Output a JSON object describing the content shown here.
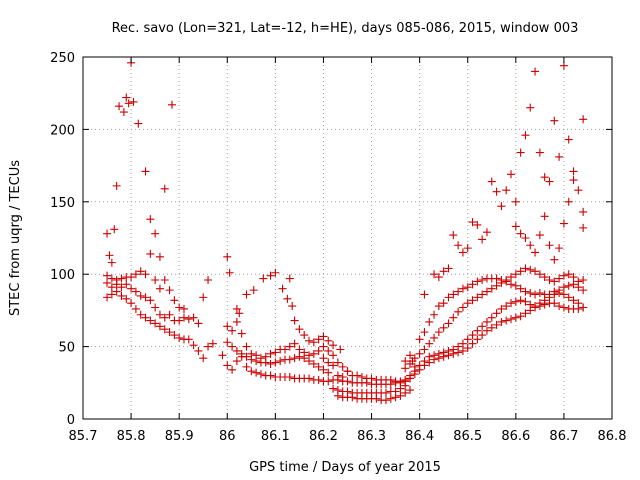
{
  "chart_data": {
    "type": "scatter",
    "title": "Rec. savo (Lon=321, Lat=-12, h=HE), days 085-086, 2015, window 003",
    "xlabel": "GPS time / Days of year 2015",
    "ylabel": "STEC from uqrg / TECUs",
    "xlim": [
      85.7,
      86.8
    ],
    "ylim": [
      0,
      250
    ],
    "x_ticks": [
      "85.7",
      "85.8",
      "85.9",
      "86",
      "86.1",
      "86.2",
      "86.3",
      "86.4",
      "86.5",
      "86.6",
      "86.7",
      "86.8"
    ],
    "y_ticks": [
      "0",
      "50",
      "100",
      "150",
      "200",
      "250"
    ],
    "grid": true,
    "marker": "plus",
    "color": "#cc0000",
    "points": [
      [
        85.75,
        128
      ],
      [
        85.755,
        113
      ],
      [
        85.76,
        108
      ],
      [
        85.765,
        131
      ],
      [
        85.77,
        161
      ],
      [
        85.775,
        216
      ],
      [
        85.785,
        212
      ],
      [
        85.79,
        222
      ],
      [
        85.795,
        218
      ],
      [
        85.8,
        246
      ],
      [
        85.805,
        219
      ],
      [
        85.815,
        204
      ],
      [
        85.83,
        171
      ],
      [
        85.84,
        138
      ],
      [
        85.85,
        128
      ],
      [
        85.86,
        112
      ],
      [
        85.87,
        159
      ],
      [
        85.885,
        217
      ],
      [
        85.75,
        99
      ],
      [
        85.76,
        97
      ],
      [
        85.77,
        96
      ],
      [
        85.78,
        97
      ],
      [
        85.79,
        98
      ],
      [
        85.8,
        98
      ],
      [
        85.81,
        100
      ],
      [
        85.82,
        102
      ],
      [
        85.83,
        100
      ],
      [
        85.84,
        114
      ],
      [
        85.85,
        96
      ],
      [
        85.86,
        90
      ],
      [
        85.87,
        96
      ],
      [
        85.88,
        89
      ],
      [
        85.89,
        82
      ],
      [
        85.9,
        77
      ],
      [
        85.91,
        76
      ],
      [
        85.92,
        69
      ],
      [
        85.93,
        70
      ],
      [
        85.94,
        66
      ],
      [
        85.95,
        84
      ],
      [
        85.96,
        96
      ],
      [
        85.75,
        94
      ],
      [
        85.76,
        91
      ],
      [
        85.77,
        93
      ],
      [
        85.78,
        91
      ],
      [
        85.79,
        93
      ],
      [
        85.8,
        90
      ],
      [
        85.81,
        88
      ],
      [
        85.82,
        85
      ],
      [
        85.83,
        84
      ],
      [
        85.84,
        82
      ],
      [
        85.85,
        77
      ],
      [
        85.86,
        72
      ],
      [
        85.87,
        70
      ],
      [
        85.88,
        72
      ],
      [
        85.89,
        68
      ],
      [
        85.9,
        68
      ],
      [
        85.91,
        70
      ],
      [
        85.75,
        84
      ],
      [
        85.76,
        86
      ],
      [
        85.77,
        88
      ],
      [
        85.78,
        85
      ],
      [
        85.79,
        83
      ],
      [
        85.8,
        80
      ],
      [
        85.81,
        76
      ],
      [
        85.82,
        72
      ],
      [
        85.83,
        70
      ],
      [
        85.84,
        68
      ],
      [
        85.85,
        66
      ],
      [
        85.86,
        64
      ],
      [
        85.87,
        62
      ],
      [
        85.88,
        60
      ],
      [
        85.89,
        58
      ],
      [
        85.9,
        56
      ],
      [
        85.91,
        55
      ],
      [
        85.92,
        55
      ],
      [
        85.93,
        51
      ],
      [
        85.94,
        47
      ],
      [
        85.95,
        42
      ],
      [
        85.96,
        50
      ],
      [
        85.97,
        52
      ],
      [
        85.99,
        44
      ],
      [
        86.0,
        112
      ],
      [
        86.005,
        101
      ],
      [
        86.02,
        76
      ],
      [
        86.025,
        73
      ],
      [
        86.04,
        86
      ],
      [
        86.055,
        89
      ],
      [
        86.075,
        97
      ],
      [
        86.09,
        99
      ],
      [
        86.1,
        101
      ],
      [
        86.115,
        90
      ],
      [
        86.125,
        83
      ],
      [
        86.13,
        97
      ],
      [
        86.135,
        78
      ],
      [
        86.14,
        68
      ],
      [
        86.15,
        62
      ],
      [
        86.16,
        58
      ],
      [
        86.17,
        54
      ],
      [
        86.18,
        53
      ],
      [
        86.19,
        55
      ],
      [
        86.2,
        57
      ],
      [
        86.21,
        54
      ],
      [
        86.22,
        51
      ],
      [
        86.235,
        48
      ],
      [
        86.0,
        64
      ],
      [
        86.01,
        61
      ],
      [
        86.02,
        67
      ],
      [
        86.03,
        59
      ],
      [
        86.04,
        50
      ],
      [
        86.05,
        45
      ],
      [
        86.06,
        44
      ],
      [
        86.07,
        42
      ],
      [
        86.08,
        43
      ],
      [
        86.09,
        45
      ],
      [
        86.1,
        46
      ],
      [
        86.11,
        48
      ],
      [
        86.12,
        48
      ],
      [
        86.13,
        50
      ],
      [
        86.14,
        52
      ],
      [
        86.15,
        48
      ],
      [
        86.16,
        46
      ],
      [
        86.17,
        44
      ],
      [
        86.18,
        45
      ],
      [
        86.19,
        47
      ],
      [
        86.2,
        50
      ],
      [
        86.21,
        47
      ],
      [
        86.22,
        44
      ],
      [
        86.23,
        39
      ],
      [
        86.24,
        36
      ],
      [
        86.25,
        33
      ],
      [
        86.0,
        53
      ],
      [
        86.01,
        50
      ],
      [
        86.02,
        47
      ],
      [
        86.03,
        45
      ],
      [
        86.04,
        43
      ],
      [
        86.05,
        41
      ],
      [
        86.06,
        40
      ],
      [
        86.07,
        39
      ],
      [
        86.08,
        39
      ],
      [
        86.09,
        38
      ],
      [
        86.1,
        39
      ],
      [
        86.11,
        40
      ],
      [
        86.12,
        41
      ],
      [
        86.13,
        41
      ],
      [
        86.14,
        42
      ],
      [
        86.15,
        43
      ],
      [
        86.16,
        42
      ],
      [
        86.17,
        40
      ],
      [
        86.18,
        38
      ],
      [
        86.19,
        36
      ],
      [
        86.2,
        34
      ],
      [
        86.21,
        32
      ],
      [
        86.0,
        37
      ],
      [
        86.01,
        34
      ],
      [
        86.02,
        40
      ],
      [
        86.03,
        43
      ],
      [
        86.04,
        36
      ],
      [
        86.05,
        33
      ],
      [
        86.06,
        32
      ],
      [
        86.07,
        31
      ],
      [
        86.08,
        30
      ],
      [
        86.09,
        30
      ],
      [
        86.1,
        29
      ],
      [
        86.11,
        29
      ],
      [
        86.12,
        29
      ],
      [
        86.13,
        29
      ],
      [
        86.14,
        28
      ],
      [
        86.15,
        28
      ],
      [
        86.16,
        28
      ],
      [
        86.17,
        28
      ],
      [
        86.18,
        27
      ],
      [
        86.19,
        27
      ],
      [
        86.2,
        26
      ],
      [
        86.21,
        26
      ],
      [
        86.2,
        42
      ],
      [
        86.21,
        39
      ],
      [
        86.22,
        37
      ],
      [
        86.23,
        30
      ],
      [
        86.24,
        29
      ],
      [
        86.25,
        33
      ],
      [
        86.26,
        30
      ],
      [
        86.27,
        30
      ],
      [
        86.28,
        29
      ],
      [
        86.29,
        28
      ],
      [
        86.3,
        28
      ],
      [
        86.31,
        27
      ],
      [
        86.32,
        27
      ],
      [
        86.33,
        27
      ],
      [
        86.34,
        27
      ],
      [
        86.35,
        26
      ],
      [
        86.36,
        26
      ],
      [
        86.37,
        27
      ],
      [
        86.38,
        28
      ],
      [
        86.385,
        40
      ],
      [
        86.22,
        27
      ],
      [
        86.23,
        27
      ],
      [
        86.24,
        26
      ],
      [
        86.25,
        26
      ],
      [
        86.26,
        25
      ],
      [
        86.27,
        25
      ],
      [
        86.28,
        25
      ],
      [
        86.29,
        25
      ],
      [
        86.3,
        24
      ],
      [
        86.31,
        24
      ],
      [
        86.32,
        24
      ],
      [
        86.33,
        24
      ],
      [
        86.34,
        24
      ],
      [
        86.35,
        25
      ],
      [
        86.36,
        25
      ],
      [
        86.37,
        26
      ],
      [
        86.22,
        21
      ],
      [
        86.23,
        20
      ],
      [
        86.24,
        19
      ],
      [
        86.25,
        19
      ],
      [
        86.26,
        18
      ],
      [
        86.27,
        18
      ],
      [
        86.28,
        18
      ],
      [
        86.29,
        18
      ],
      [
        86.3,
        18
      ],
      [
        86.31,
        18
      ],
      [
        86.32,
        18
      ],
      [
        86.33,
        18
      ],
      [
        86.34,
        19
      ],
      [
        86.35,
        19
      ],
      [
        86.36,
        21
      ],
      [
        86.37,
        23
      ],
      [
        86.23,
        16
      ],
      [
        86.24,
        15
      ],
      [
        86.25,
        15
      ],
      [
        86.26,
        15
      ],
      [
        86.27,
        14
      ],
      [
        86.28,
        14
      ],
      [
        86.29,
        14
      ],
      [
        86.3,
        14
      ],
      [
        86.31,
        14
      ],
      [
        86.32,
        13
      ],
      [
        86.33,
        13
      ],
      [
        86.34,
        14
      ],
      [
        86.35,
        15
      ],
      [
        86.36,
        16
      ],
      [
        86.37,
        18
      ],
      [
        86.38,
        20
      ],
      [
        86.37,
        40
      ],
      [
        86.38,
        44
      ],
      [
        86.39,
        36
      ],
      [
        86.4,
        55
      ],
      [
        86.41,
        60
      ],
      [
        86.42,
        67
      ],
      [
        86.43,
        72
      ],
      [
        86.44,
        78
      ],
      [
        86.45,
        80
      ],
      [
        86.46,
        84
      ],
      [
        86.47,
        86
      ],
      [
        86.48,
        88
      ],
      [
        86.49,
        90
      ],
      [
        86.5,
        91
      ],
      [
        86.51,
        93
      ],
      [
        86.52,
        95
      ],
      [
        86.53,
        96
      ],
      [
        86.54,
        97
      ],
      [
        86.55,
        97
      ],
      [
        86.56,
        97
      ],
      [
        86.57,
        96
      ],
      [
        86.58,
        95
      ],
      [
        86.59,
        93
      ],
      [
        86.6,
        92
      ],
      [
        86.61,
        90
      ],
      [
        86.62,
        88
      ],
      [
        86.63,
        87
      ],
      [
        86.64,
        86
      ],
      [
        86.65,
        87
      ],
      [
        86.66,
        86
      ],
      [
        86.67,
        86
      ],
      [
        86.68,
        88
      ],
      [
        86.69,
        89
      ],
      [
        86.7,
        91
      ],
      [
        86.71,
        92
      ],
      [
        86.72,
        93
      ],
      [
        86.73,
        95
      ],
      [
        86.74,
        96
      ],
      [
        86.37,
        35
      ],
      [
        86.38,
        38
      ],
      [
        86.39,
        42
      ],
      [
        86.4,
        45
      ],
      [
        86.41,
        48
      ],
      [
        86.42,
        52
      ],
      [
        86.43,
        56
      ],
      [
        86.44,
        60
      ],
      [
        86.45,
        63
      ],
      [
        86.46,
        66
      ],
      [
        86.47,
        70
      ],
      [
        86.48,
        74
      ],
      [
        86.49,
        77
      ],
      [
        86.5,
        80
      ],
      [
        86.51,
        82
      ],
      [
        86.52,
        84
      ],
      [
        86.53,
        86
      ],
      [
        86.54,
        88
      ],
      [
        86.55,
        90
      ],
      [
        86.56,
        92
      ],
      [
        86.57,
        94
      ],
      [
        86.58,
        96
      ],
      [
        86.59,
        98
      ],
      [
        86.6,
        100
      ],
      [
        86.61,
        102
      ],
      [
        86.62,
        104
      ],
      [
        86.63,
        103
      ],
      [
        86.64,
        102
      ],
      [
        86.65,
        100
      ],
      [
        86.66,
        98
      ],
      [
        86.67,
        96
      ],
      [
        86.68,
        95
      ],
      [
        86.69,
        97
      ],
      [
        86.7,
        99
      ],
      [
        86.71,
        100
      ],
      [
        86.72,
        98
      ],
      [
        86.73,
        91
      ],
      [
        86.74,
        89
      ],
      [
        86.38,
        30
      ],
      [
        86.39,
        33
      ],
      [
        86.4,
        37
      ],
      [
        86.41,
        40
      ],
      [
        86.42,
        43
      ],
      [
        86.43,
        44
      ],
      [
        86.44,
        45
      ],
      [
        86.45,
        46
      ],
      [
        86.46,
        47
      ],
      [
        86.47,
        48
      ],
      [
        86.48,
        50
      ],
      [
        86.49,
        52
      ],
      [
        86.5,
        55
      ],
      [
        86.51,
        58
      ],
      [
        86.52,
        61
      ],
      [
        86.53,
        64
      ],
      [
        86.54,
        67
      ],
      [
        86.55,
        70
      ],
      [
        86.56,
        73
      ],
      [
        86.57,
        76
      ],
      [
        86.58,
        78
      ],
      [
        86.59,
        80
      ],
      [
        86.6,
        81
      ],
      [
        86.61,
        82
      ],
      [
        86.62,
        81
      ],
      [
        86.63,
        79
      ],
      [
        86.64,
        78
      ],
      [
        86.65,
        80
      ],
      [
        86.66,
        82
      ],
      [
        86.67,
        84
      ],
      [
        86.68,
        86
      ],
      [
        86.69,
        87
      ],
      [
        86.7,
        86
      ],
      [
        86.71,
        84
      ],
      [
        86.72,
        82
      ],
      [
        86.73,
        80
      ],
      [
        86.74,
        77
      ],
      [
        86.38,
        28
      ],
      [
        86.39,
        31
      ],
      [
        86.4,
        34
      ],
      [
        86.41,
        37
      ],
      [
        86.42,
        39
      ],
      [
        86.43,
        41
      ],
      [
        86.44,
        42
      ],
      [
        86.45,
        43
      ],
      [
        86.46,
        44
      ],
      [
        86.47,
        45
      ],
      [
        86.48,
        46
      ],
      [
        86.49,
        47
      ],
      [
        86.5,
        49
      ],
      [
        86.51,
        52
      ],
      [
        86.52,
        55
      ],
      [
        86.53,
        58
      ],
      [
        86.54,
        61
      ],
      [
        86.55,
        63
      ],
      [
        86.56,
        65
      ],
      [
        86.57,
        67
      ],
      [
        86.58,
        68
      ],
      [
        86.59,
        69
      ],
      [
        86.6,
        70
      ],
      [
        86.61,
        71
      ],
      [
        86.62,
        73
      ],
      [
        86.63,
        75
      ],
      [
        86.64,
        77
      ],
      [
        86.65,
        78
      ],
      [
        86.66,
        79
      ],
      [
        86.67,
        80
      ],
      [
        86.68,
        80
      ],
      [
        86.69,
        78
      ],
      [
        86.7,
        77
      ],
      [
        86.71,
        76
      ],
      [
        86.72,
        76
      ],
      [
        86.73,
        76
      ],
      [
        86.74,
        77
      ],
      [
        86.41,
        86
      ],
      [
        86.43,
        100
      ],
      [
        86.44,
        98
      ],
      [
        86.45,
        102
      ],
      [
        86.46,
        104
      ],
      [
        86.47,
        127
      ],
      [
        86.48,
        120
      ],
      [
        86.49,
        115
      ],
      [
        86.5,
        118
      ],
      [
        86.51,
        136
      ],
      [
        86.52,
        134
      ],
      [
        86.53,
        124
      ],
      [
        86.54,
        129
      ],
      [
        86.55,
        164
      ],
      [
        86.56,
        157
      ],
      [
        86.57,
        147
      ],
      [
        86.58,
        158
      ],
      [
        86.59,
        169
      ],
      [
        86.6,
        150
      ],
      [
        86.61,
        184
      ],
      [
        86.62,
        196
      ],
      [
        86.63,
        215
      ],
      [
        86.64,
        240
      ],
      [
        86.65,
        184
      ],
      [
        86.66,
        167
      ],
      [
        86.67,
        164
      ],
      [
        86.68,
        206
      ],
      [
        86.69,
        181
      ],
      [
        86.7,
        244
      ],
      [
        86.71,
        193
      ],
      [
        86.72,
        171
      ],
      [
        86.73,
        158
      ],
      [
        86.74,
        143
      ],
      [
        86.74,
        207
      ],
      [
        86.6,
        133
      ],
      [
        86.61,
        128
      ],
      [
        86.62,
        125
      ],
      [
        86.63,
        120
      ],
      [
        86.64,
        115
      ],
      [
        86.65,
        127
      ],
      [
        86.66,
        140
      ],
      [
        86.67,
        120
      ],
      [
        86.68,
        110
      ],
      [
        86.69,
        118
      ],
      [
        86.7,
        135
      ],
      [
        86.71,
        150
      ],
      [
        86.72,
        165
      ],
      [
        86.74,
        132
      ]
    ]
  }
}
